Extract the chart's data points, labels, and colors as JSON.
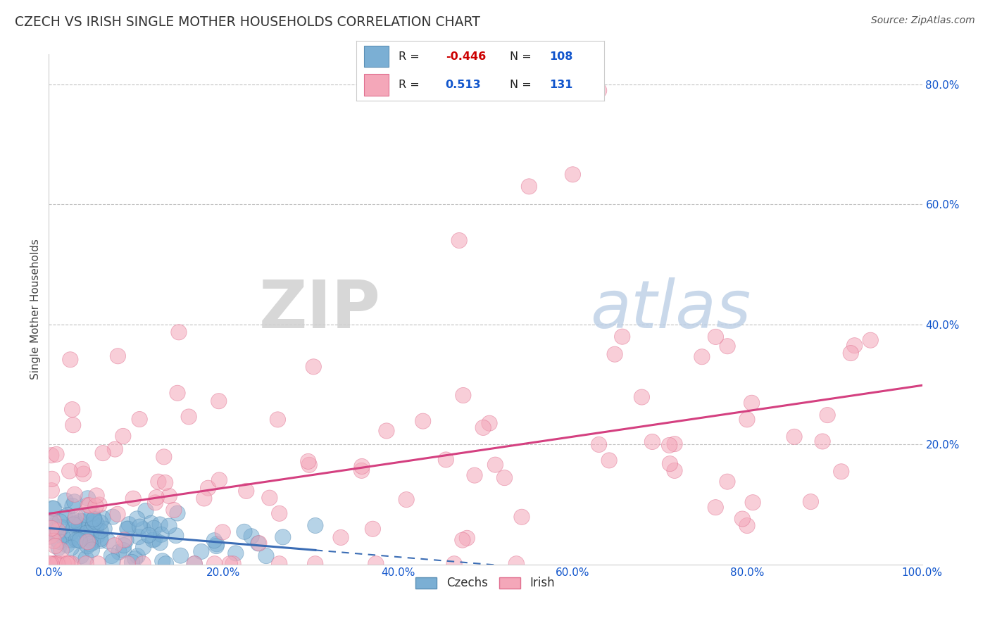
{
  "title": "CZECH VS IRISH SINGLE MOTHER HOUSEHOLDS CORRELATION CHART",
  "source": "Source: ZipAtlas.com",
  "ylabel": "Single Mother Households",
  "xlim": [
    0.0,
    1.0
  ],
  "ylim": [
    0.0,
    0.85
  ],
  "czech_R": -0.446,
  "czech_N": 108,
  "irish_R": 0.513,
  "irish_N": 131,
  "czech_color": "#7bafd4",
  "irish_color": "#f4a7b9",
  "czech_edge_color": "#5b8fb5",
  "irish_edge_color": "#e07090",
  "czech_line_color": "#3b6db5",
  "irish_line_color": "#d44080",
  "background_color": "#ffffff",
  "grid_color": "#bbbbbb",
  "title_color": "#333333",
  "source_color": "#555555",
  "watermark_zip": "ZIP",
  "watermark_atlas": "atlas",
  "watermark_zip_color": "#d0d0d0",
  "watermark_atlas_color": "#b8cce4",
  "x_ticks": [
    0.0,
    0.2,
    0.4,
    0.6,
    0.8,
    1.0
  ],
  "x_tick_labels": [
    "0.0%",
    "20.0%",
    "40.0%",
    "60.0%",
    "80.0%",
    "100.0%"
  ],
  "y_ticks": [
    0.2,
    0.4,
    0.6,
    0.8
  ],
  "y_tick_labels": [
    "20.0%",
    "40.0%",
    "60.0%",
    "80.0%"
  ],
  "legend_R_color": "#1155cc",
  "legend_neg_color": "#cc0000",
  "legend_N_color": "#1155cc"
}
